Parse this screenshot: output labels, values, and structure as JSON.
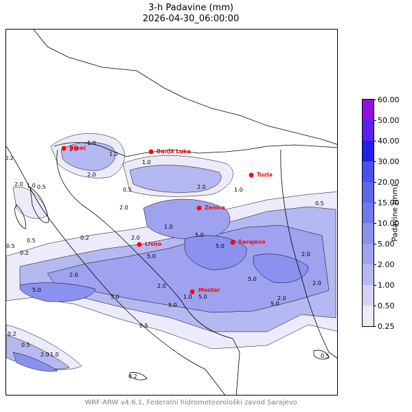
{
  "title": {
    "line1": "3-h Padavine (mm)",
    "line2": "2026-04-30_06:00:00"
  },
  "colorbar": {
    "label": "Padavine (mm)",
    "ticks": [
      "0.25",
      "0.50",
      "1.00",
      "2.00",
      "5.00",
      "10.00",
      "15.00",
      "20.00",
      "30.00",
      "40.00",
      "50.00",
      "60.00"
    ],
    "colors": [
      "#ebebfb",
      "#d3d3f6",
      "#b5b9f1",
      "#9ea2ef",
      "#8a91ee",
      "#7177ec",
      "#5f66ec",
      "#4a4ff0",
      "#1f1ff0",
      "#5a20f0",
      "#9010e0",
      "#a0009a"
    ]
  },
  "cities": [
    {
      "name": "Bihać"
    },
    {
      "name": "Banja Luka"
    },
    {
      "name": "Tuzla"
    },
    {
      "name": "Zenica"
    },
    {
      "name": "Sarajevo"
    },
    {
      "name": "Livno"
    },
    {
      "name": "Mostar"
    }
  ],
  "contour_labels": [
    "1.0",
    "2.0",
    "0.2",
    "2.0",
    "1.0",
    "0.5",
    "1.0",
    "0.5",
    "2.0",
    "0.5",
    "1.0",
    "2.0",
    "5.0",
    "0.5",
    "0.2",
    "0.5",
    "0.2",
    "5.0",
    "2.0",
    "5.0",
    "1.0",
    "5.0",
    "2.0",
    "5.0",
    "2.0",
    "1.0",
    "5.0",
    "5.0",
    "2.0",
    "5.0",
    "2.0",
    "5.0",
    "2.0",
    "0.5",
    "0.2",
    "0.5",
    "2.0",
    "1.0",
    "0.2",
    "0.5",
    "2.0",
    "1.0"
  ],
  "colors": {
    "city_marker": "#ff0000",
    "borders": "#000000"
  },
  "footer": "WRF-ARW v4.6.1, Federalni hidrometeorološki zavod Sarajevo"
}
